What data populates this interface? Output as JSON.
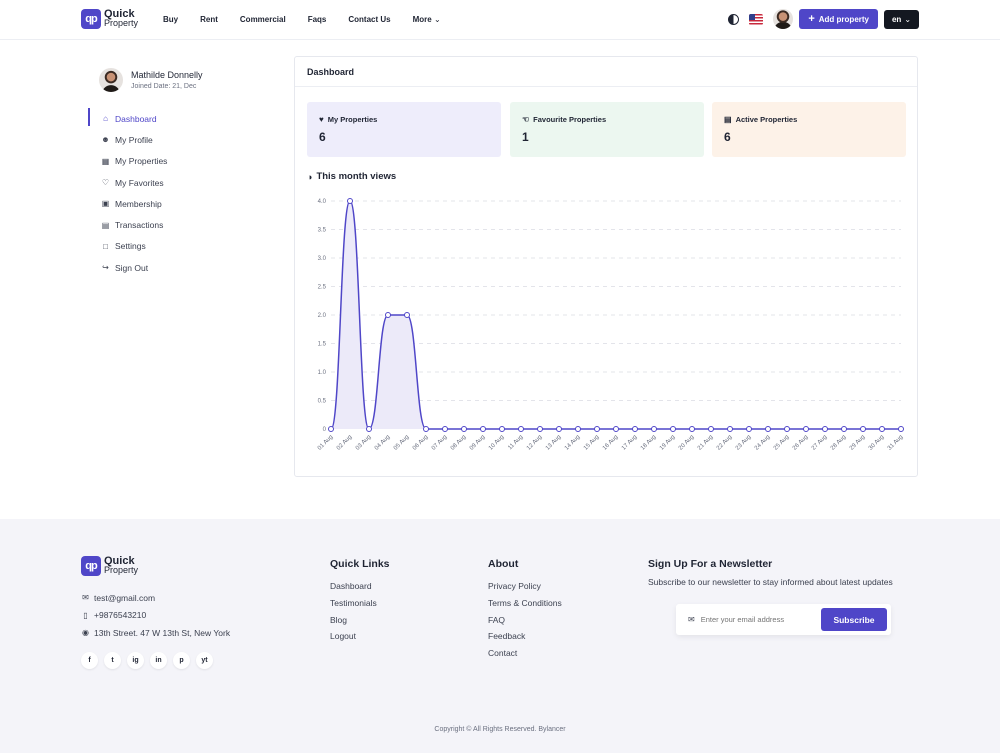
{
  "header": {
    "logo": {
      "mark": "qp",
      "line1": "Quick",
      "line2": "Property"
    },
    "nav": [
      "Buy",
      "Rent",
      "Commercial",
      "Faqs",
      "Contact Us",
      "More"
    ],
    "add_property": "Add property",
    "lang": "en"
  },
  "profile": {
    "name": "Mathilde Donnelly",
    "joined": "Joined Date: 21, Dec"
  },
  "sidebar": [
    {
      "label": "Dashboard",
      "icon": "home-icon",
      "active": true
    },
    {
      "label": "My Profile",
      "icon": "user-icon"
    },
    {
      "label": "My Properties",
      "icon": "building-icon"
    },
    {
      "label": "My Favorites",
      "icon": "heart-icon"
    },
    {
      "label": "Membership",
      "icon": "gift-icon"
    },
    {
      "label": "Transactions",
      "icon": "document-icon"
    },
    {
      "label": "Settings",
      "icon": "lock-icon"
    },
    {
      "label": "Sign Out",
      "icon": "logout-icon"
    }
  ],
  "dashboard": {
    "title": "Dashboard",
    "stats": [
      {
        "label": "My Properties",
        "value": "6",
        "icon": "heart-icon",
        "color": "#eeedfb"
      },
      {
        "label": "Favourite Properties",
        "value": "1",
        "icon": "thumbs-up-icon",
        "color": "#ecf7f0"
      },
      {
        "label": "Active Properties",
        "value": "6",
        "icon": "briefcase-icon",
        "color": "#fdf2e8"
      }
    ],
    "views_title": "This month views"
  },
  "chart_data": {
    "type": "line",
    "categories": [
      "01 Aug",
      "02 Aug",
      "03 Aug",
      "04 Aug",
      "05 Aug",
      "06 Aug",
      "07 Aug",
      "08 Aug",
      "09 Aug",
      "10 Aug",
      "11 Aug",
      "12 Aug",
      "13 Aug",
      "14 Aug",
      "15 Aug",
      "16 Aug",
      "17 Aug",
      "18 Aug",
      "19 Aug",
      "20 Aug",
      "21 Aug",
      "22 Aug",
      "23 Aug",
      "24 Aug",
      "25 Aug",
      "26 Aug",
      "27 Aug",
      "28 Aug",
      "29 Aug",
      "30 Aug",
      "31 Aug"
    ],
    "values": [
      0,
      4,
      0,
      2,
      2,
      0,
      0,
      0,
      0,
      0,
      0,
      0,
      0,
      0,
      0,
      0,
      0,
      0,
      0,
      0,
      0,
      0,
      0,
      0,
      0,
      0,
      0,
      0,
      0,
      0,
      0
    ],
    "yticks": [
      "0",
      "0.5",
      "1.0",
      "1.5",
      "2.0",
      "2.5",
      "3.0",
      "3.5",
      "4.0"
    ],
    "ylim": [
      0,
      4
    ],
    "line_color": "#4f46c8",
    "fill_color": "#eceaf9",
    "grid": true
  },
  "footer": {
    "logo": {
      "mark": "qp",
      "line1": "Quick",
      "line2": "Property"
    },
    "email": "test@gmail.com",
    "phone": "+9876543210",
    "address": "13th Street. 47 W 13th St, New York",
    "socials": [
      "f",
      "t",
      "ig",
      "in",
      "p",
      "yt"
    ],
    "quick_links": {
      "title": "Quick Links",
      "links": [
        "Dashboard",
        "Testimonials",
        "Blog",
        "Logout"
      ]
    },
    "about": {
      "title": "About",
      "links": [
        "Privacy Policy",
        "Terms & Conditions",
        "FAQ",
        "Feedback",
        "Contact"
      ]
    },
    "newsletter": {
      "title": "Sign Up For a Newsletter",
      "desc": "Subscribe to our newsletter to stay informed about latest updates",
      "placeholder": "Enter your email address",
      "button": "Subscribe"
    },
    "copyright": "Copyright © All Rights Reserved. Bylancer"
  }
}
